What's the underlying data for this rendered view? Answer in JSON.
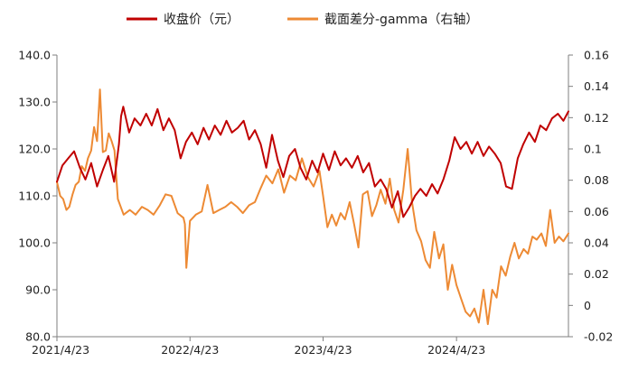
{
  "chart_data": {
    "type": "line",
    "title": "",
    "xlabel": "",
    "ylabel": "",
    "y2label": "",
    "x_ticks": [
      "2021/4/23",
      "2022/4/23",
      "2023/4/23",
      "2024/4/23"
    ],
    "x_range": [
      "2021/4/23",
      "2025/2/24"
    ],
    "y_left": {
      "lim": [
        80.0,
        140.0
      ],
      "ticks": [
        "80.0",
        "90.0",
        "100.0",
        "110.0",
        "120.0",
        "130.0",
        "140.0"
      ]
    },
    "y_right": {
      "lim": [
        -0.02,
        0.16
      ],
      "ticks": [
        "-0.02",
        "0",
        "0.02",
        "0.04",
        "0.06",
        "0.08",
        "0.1",
        "0.12",
        "0.14",
        "0.16"
      ]
    },
    "legend": {
      "placement": "top-center"
    },
    "grid": false,
    "series": [
      {
        "name": "收盘价（元）",
        "axis": "left",
        "color": "#C00000",
        "points": [
          [
            "2021/4/23",
            113.0
          ],
          [
            "2021/5/8",
            116.5
          ],
          [
            "2021/5/24",
            118.0
          ],
          [
            "2021/6/9",
            119.5
          ],
          [
            "2021/6/25",
            116.0
          ],
          [
            "2021/7/10",
            113.5
          ],
          [
            "2021/7/26",
            117.0
          ],
          [
            "2021/8/11",
            112.0
          ],
          [
            "2021/8/27",
            115.5
          ],
          [
            "2021/9/11",
            118.5
          ],
          [
            "2021/9/27",
            113.0
          ],
          [
            "2021/10/10",
            121.0
          ],
          [
            "2021/10/16",
            127.0
          ],
          [
            "2021/10/22",
            129.0
          ],
          [
            "2021/11/7",
            123.5
          ],
          [
            "2021/11/22",
            126.5
          ],
          [
            "2021/12/8",
            125.0
          ],
          [
            "2021/12/24",
            127.5
          ],
          [
            "2022/1/8",
            125.0
          ],
          [
            "2022/1/24",
            128.5
          ],
          [
            "2022/2/9",
            124.0
          ],
          [
            "2022/2/24",
            126.5
          ],
          [
            "2022/3/12",
            124.0
          ],
          [
            "2022/3/28",
            118.0
          ],
          [
            "2022/4/12",
            121.5
          ],
          [
            "2022/4/28",
            123.5
          ],
          [
            "2022/5/14",
            121.0
          ],
          [
            "2022/5/30",
            124.5
          ],
          [
            "2022/6/14",
            122.0
          ],
          [
            "2022/6/30",
            125.0
          ],
          [
            "2022/7/16",
            123.0
          ],
          [
            "2022/8/1",
            126.0
          ],
          [
            "2022/8/16",
            123.5
          ],
          [
            "2022/9/1",
            124.5
          ],
          [
            "2022/9/17",
            126.0
          ],
          [
            "2022/10/2",
            122.0
          ],
          [
            "2022/10/18",
            124.0
          ],
          [
            "2022/11/3",
            121.0
          ],
          [
            "2022/11/18",
            116.0
          ],
          [
            "2022/12/4",
            123.0
          ],
          [
            "2022/12/20",
            117.5
          ],
          [
            "2023/1/4",
            114.0
          ],
          [
            "2023/1/20",
            118.5
          ],
          [
            "2023/2/5",
            120.0
          ],
          [
            "2023/2/20",
            116.0
          ],
          [
            "2023/3/8",
            113.5
          ],
          [
            "2023/3/24",
            117.5
          ],
          [
            "2023/4/8",
            115.0
          ],
          [
            "2023/4/23",
            119.0
          ],
          [
            "2023/5/9",
            115.5
          ],
          [
            "2023/5/25",
            119.5
          ],
          [
            "2023/6/10",
            116.5
          ],
          [
            "2023/6/25",
            118.0
          ],
          [
            "2023/7/11",
            116.0
          ],
          [
            "2023/7/27",
            118.5
          ],
          [
            "2023/8/11",
            115.0
          ],
          [
            "2023/8/27",
            117.0
          ],
          [
            "2023/9/12",
            112.0
          ],
          [
            "2023/9/28",
            113.5
          ],
          [
            "2023/10/13",
            111.5
          ],
          [
            "2023/10/29",
            107.5
          ],
          [
            "2023/11/14",
            111.0
          ],
          [
            "2023/11/29",
            105.5
          ],
          [
            "2023/12/15",
            107.5
          ],
          [
            "2023/12/31",
            110.0
          ],
          [
            "2024/1/15",
            111.5
          ],
          [
            "2024/1/31",
            110.0
          ],
          [
            "2024/2/16",
            112.5
          ],
          [
            "2024/3/2",
            110.5
          ],
          [
            "2024/3/18",
            113.5
          ],
          [
            "2024/4/3",
            117.5
          ],
          [
            "2024/4/18",
            122.5
          ],
          [
            "2024/5/4",
            120.0
          ],
          [
            "2024/5/20",
            121.5
          ],
          [
            "2024/6/4",
            119.0
          ],
          [
            "2024/6/20",
            121.5
          ],
          [
            "2024/7/6",
            118.5
          ],
          [
            "2024/7/21",
            120.5
          ],
          [
            "2024/8/6",
            119.0
          ],
          [
            "2024/8/22",
            117.0
          ],
          [
            "2024/9/6",
            112.0
          ],
          [
            "2024/9/22",
            111.5
          ],
          [
            "2024/10/8",
            118.0
          ],
          [
            "2024/10/23",
            121.0
          ],
          [
            "2024/11/8",
            123.5
          ],
          [
            "2024/11/24",
            121.5
          ],
          [
            "2024/12/9",
            125.0
          ],
          [
            "2024/12/25",
            124.0
          ],
          [
            "2025/1/10",
            126.5
          ],
          [
            "2025/1/26",
            127.5
          ],
          [
            "2025/2/10",
            126.0
          ],
          [
            "2025/2/24",
            128.0
          ]
        ]
      },
      {
        "name": "截面差分-gamma（右轴）",
        "axis": "right",
        "color": "#ED8A34",
        "points": [
          [
            "2021/4/23",
            0.079
          ],
          [
            "2021/5/2",
            0.07
          ],
          [
            "2021/5/10",
            0.068
          ],
          [
            "2021/5/19",
            0.061
          ],
          [
            "2021/5/27",
            0.063
          ],
          [
            "2021/6/5",
            0.071
          ],
          [
            "2021/6/13",
            0.077
          ],
          [
            "2021/6/22",
            0.079
          ],
          [
            "2021/6/30",
            0.089
          ],
          [
            "2021/7/9",
            0.086
          ],
          [
            "2021/7/17",
            0.094
          ],
          [
            "2021/7/26",
            0.099
          ],
          [
            "2021/8/3",
            0.114
          ],
          [
            "2021/8/11",
            0.105
          ],
          [
            "2021/8/19",
            0.138
          ],
          [
            "2021/8/27",
            0.098
          ],
          [
            "2021/9/4",
            0.099
          ],
          [
            "2021/9/12",
            0.11
          ],
          [
            "2021/9/20",
            0.105
          ],
          [
            "2021/9/28",
            0.099
          ],
          [
            "2021/10/7",
            0.068
          ],
          [
            "2021/10/23",
            0.058
          ],
          [
            "2021/11/9",
            0.061
          ],
          [
            "2021/11/25",
            0.058
          ],
          [
            "2021/12/12",
            0.063
          ],
          [
            "2021/12/28",
            0.061
          ],
          [
            "2022/1/13",
            0.058
          ],
          [
            "2022/1/30",
            0.064
          ],
          [
            "2022/2/15",
            0.071
          ],
          [
            "2022/3/3",
            0.07
          ],
          [
            "2022/3/20",
            0.059
          ],
          [
            "2022/4/5",
            0.056
          ],
          [
            "2022/4/9",
            0.052
          ],
          [
            "2022/4/13",
            0.024
          ],
          [
            "2022/4/17",
            0.036
          ],
          [
            "2022/4/23",
            0.054
          ],
          [
            "2022/5/9",
            0.058
          ],
          [
            "2022/5/25",
            0.06
          ],
          [
            "2022/6/10",
            0.077
          ],
          [
            "2022/6/26",
            0.059
          ],
          [
            "2022/7/12",
            0.061
          ],
          [
            "2022/7/29",
            0.063
          ],
          [
            "2022/8/14",
            0.066
          ],
          [
            "2022/8/30",
            0.063
          ],
          [
            "2022/9/15",
            0.059
          ],
          [
            "2022/10/2",
            0.064
          ],
          [
            "2022/10/18",
            0.066
          ],
          [
            "2022/11/3",
            0.075
          ],
          [
            "2022/11/18",
            0.083
          ],
          [
            "2022/12/5",
            0.078
          ],
          [
            "2022/12/21",
            0.087
          ],
          [
            "2023/1/6",
            0.072
          ],
          [
            "2023/1/22",
            0.083
          ],
          [
            "2023/2/7",
            0.08
          ],
          [
            "2023/2/24",
            0.094
          ],
          [
            "2023/3/12",
            0.082
          ],
          [
            "2023/3/28",
            0.076
          ],
          [
            "2023/4/13",
            0.086
          ],
          [
            "2023/4/23",
            0.07
          ],
          [
            "2023/5/5",
            0.05
          ],
          [
            "2023/5/17",
            0.058
          ],
          [
            "2023/5/29",
            0.051
          ],
          [
            "2023/6/10",
            0.059
          ],
          [
            "2023/6/22",
            0.055
          ],
          [
            "2023/7/5",
            0.066
          ],
          [
            "2023/7/17",
            0.052
          ],
          [
            "2023/7/29",
            0.037
          ],
          [
            "2023/8/10",
            0.071
          ],
          [
            "2023/8/23",
            0.073
          ],
          [
            "2023/9/4",
            0.057
          ],
          [
            "2023/9/16",
            0.064
          ],
          [
            "2023/9/28",
            0.074
          ],
          [
            "2023/10/11",
            0.065
          ],
          [
            "2023/10/23",
            0.081
          ],
          [
            "2023/11/4",
            0.061
          ],
          [
            "2023/11/16",
            0.053
          ],
          [
            "2023/11/29",
            0.074
          ],
          [
            "2023/12/11",
            0.1
          ],
          [
            "2023/12/23",
            0.066
          ],
          [
            "2024/1/4",
            0.048
          ],
          [
            "2024/1/17",
            0.041
          ],
          [
            "2024/1/29",
            0.029
          ],
          [
            "2024/2/10",
            0.024
          ],
          [
            "2024/2/22",
            0.047
          ],
          [
            "2024/3/6",
            0.03
          ],
          [
            "2024/3/18",
            0.039
          ],
          [
            "2024/3/30",
            0.01
          ],
          [
            "2024/4/11",
            0.026
          ],
          [
            "2024/4/23",
            0.013
          ],
          [
            "2024/5/6",
            0.004
          ],
          [
            "2024/5/18",
            -0.004
          ],
          [
            "2024/5/30",
            -0.007
          ],
          [
            "2024/6/11",
            -0.002
          ],
          [
            "2024/6/23",
            -0.011
          ],
          [
            "2024/7/6",
            0.01
          ],
          [
            "2024/7/18",
            -0.012
          ],
          [
            "2024/7/30",
            0.01
          ],
          [
            "2024/8/11",
            0.005
          ],
          [
            "2024/8/23",
            0.025
          ],
          [
            "2024/9/5",
            0.019
          ],
          [
            "2024/9/17",
            0.031
          ],
          [
            "2024/9/29",
            0.04
          ],
          [
            "2024/10/11",
            0.03
          ],
          [
            "2024/10/24",
            0.036
          ],
          [
            "2024/11/5",
            0.033
          ],
          [
            "2024/11/17",
            0.044
          ],
          [
            "2024/11/29",
            0.042
          ],
          [
            "2024/12/12",
            0.046
          ],
          [
            "2024/12/24",
            0.038
          ],
          [
            "2025/1/5",
            0.061
          ],
          [
            "2025/1/17",
            0.04
          ],
          [
            "2025/1/29",
            0.044
          ],
          [
            "2025/2/10",
            0.041
          ],
          [
            "2025/2/24",
            0.046
          ]
        ]
      }
    ]
  }
}
